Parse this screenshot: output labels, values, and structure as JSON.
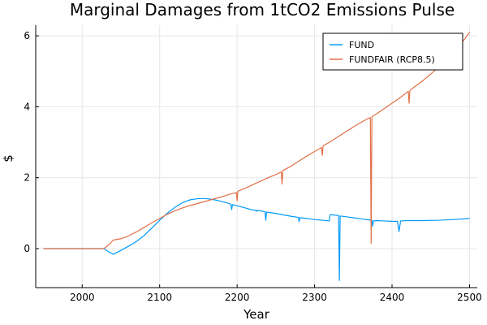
{
  "chart_data": {
    "type": "line",
    "title": "Marginal Damages from 1tCO2 Emissions Pulse",
    "xlabel": "Year",
    "ylabel": "$",
    "xlim": [
      1940,
      2510
    ],
    "ylim": [
      -1.1,
      6.3
    ],
    "xticks": [
      2000,
      2100,
      2200,
      2300,
      2400,
      2500
    ],
    "yticks": [
      0,
      2,
      4,
      6
    ],
    "grid": true,
    "legend_position": "top-right",
    "series": [
      {
        "name": "FUND",
        "color": "#009af9",
        "points": [
          [
            1950,
            0
          ],
          [
            2028,
            0
          ],
          [
            2035,
            -0.1
          ],
          [
            2040,
            -0.16
          ],
          [
            2050,
            -0.05
          ],
          [
            2060,
            0.07
          ],
          [
            2070,
            0.2
          ],
          [
            2080,
            0.37
          ],
          [
            2090,
            0.58
          ],
          [
            2100,
            0.8
          ],
          [
            2110,
            1.0
          ],
          [
            2120,
            1.17
          ],
          [
            2130,
            1.3
          ],
          [
            2140,
            1.38
          ],
          [
            2150,
            1.41
          ],
          [
            2160,
            1.41
          ],
          [
            2170,
            1.38
          ],
          [
            2180,
            1.33
          ],
          [
            2190,
            1.27
          ],
          [
            2192,
            1.24
          ],
          [
            2193,
            1.1
          ],
          [
            2194,
            1.24
          ],
          [
            2200,
            1.21
          ],
          [
            2210,
            1.15
          ],
          [
            2220,
            1.09
          ],
          [
            2224,
            1.08
          ],
          [
            2225,
            1.05
          ],
          [
            2226,
            1.08
          ],
          [
            2236,
            1.04
          ],
          [
            2237,
            0.8
          ],
          [
            2238,
            1.03
          ],
          [
            2250,
            0.99
          ],
          [
            2260,
            0.95
          ],
          [
            2270,
            0.91
          ],
          [
            2279,
            0.88
          ],
          [
            2280,
            0.76
          ],
          [
            2281,
            0.87
          ],
          [
            2290,
            0.85
          ],
          [
            2300,
            0.82
          ],
          [
            2310,
            0.8
          ],
          [
            2319,
            0.78
          ],
          [
            2320,
            0.96
          ],
          [
            2331,
            0.93
          ],
          [
            2332,
            -0.9
          ],
          [
            2333,
            0.92
          ],
          [
            2340,
            0.9
          ],
          [
            2350,
            0.87
          ],
          [
            2360,
            0.84
          ],
          [
            2370,
            0.81
          ],
          [
            2374,
            0.8
          ],
          [
            2375,
            0.63
          ],
          [
            2376,
            0.78
          ],
          [
            2380,
            0.79
          ],
          [
            2390,
            0.78
          ],
          [
            2400,
            0.77
          ],
          [
            2407,
            0.77
          ],
          [
            2409,
            0.48
          ],
          [
            2411,
            0.78
          ],
          [
            2420,
            0.79
          ],
          [
            2440,
            0.79
          ],
          [
            2460,
            0.8
          ],
          [
            2480,
            0.82
          ],
          [
            2500,
            0.85
          ]
        ]
      },
      {
        "name": "FUNDFAIR (RCP8.5)",
        "color": "#e26f46",
        "points": [
          [
            1950,
            0
          ],
          [
            2028,
            0
          ],
          [
            2035,
            0.12
          ],
          [
            2040,
            0.24
          ],
          [
            2050,
            0.28
          ],
          [
            2060,
            0.36
          ],
          [
            2070,
            0.47
          ],
          [
            2080,
            0.6
          ],
          [
            2090,
            0.73
          ],
          [
            2100,
            0.85
          ],
          [
            2110,
            0.97
          ],
          [
            2120,
            1.07
          ],
          [
            2130,
            1.15
          ],
          [
            2140,
            1.22
          ],
          [
            2150,
            1.28
          ],
          [
            2160,
            1.34
          ],
          [
            2170,
            1.4
          ],
          [
            2180,
            1.46
          ],
          [
            2190,
            1.53
          ],
          [
            2199,
            1.58
          ],
          [
            2200,
            1.35
          ],
          [
            2201,
            1.62
          ],
          [
            2210,
            1.7
          ],
          [
            2220,
            1.8
          ],
          [
            2230,
            1.9
          ],
          [
            2240,
            2.0
          ],
          [
            2250,
            2.09
          ],
          [
            2257,
            2.16
          ],
          [
            2258,
            1.82
          ],
          [
            2259,
            2.2
          ],
          [
            2270,
            2.33
          ],
          [
            2280,
            2.47
          ],
          [
            2290,
            2.61
          ],
          [
            2300,
            2.74
          ],
          [
            2309,
            2.85
          ],
          [
            2310,
            2.63
          ],
          [
            2311,
            2.9
          ],
          [
            2320,
            3.01
          ],
          [
            2330,
            3.15
          ],
          [
            2340,
            3.29
          ],
          [
            2350,
            3.43
          ],
          [
            2360,
            3.56
          ],
          [
            2370,
            3.68
          ],
          [
            2372,
            3.69
          ],
          [
            2373,
            0.15
          ],
          [
            2374,
            3.72
          ],
          [
            2380,
            3.8
          ],
          [
            2390,
            3.95
          ],
          [
            2400,
            4.1
          ],
          [
            2410,
            4.25
          ],
          [
            2420,
            4.42
          ],
          [
            2421,
            4.43
          ],
          [
            2422,
            4.1
          ],
          [
            2423,
            4.46
          ],
          [
            2430,
            4.58
          ],
          [
            2440,
            4.74
          ],
          [
            2450,
            4.92
          ],
          [
            2460,
            5.12
          ],
          [
            2470,
            5.33
          ],
          [
            2480,
            5.56
          ],
          [
            2490,
            5.8
          ],
          [
            2500,
            6.1
          ]
        ]
      }
    ]
  }
}
